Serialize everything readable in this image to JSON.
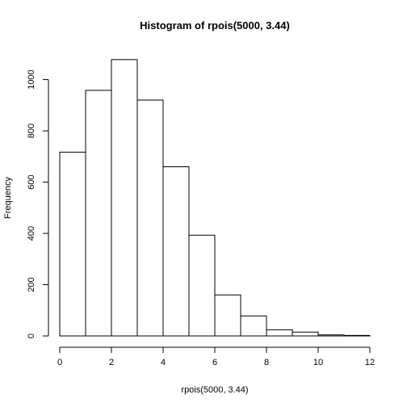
{
  "chart_data": {
    "type": "bar",
    "title": "Histogram of rpois(5000, 3.44)",
    "xlabel": "rpois(5000, 3.44)",
    "ylabel": "Frequency",
    "bin_edges": [
      0,
      1,
      2,
      3,
      4,
      5,
      6,
      7,
      8,
      9,
      10,
      11,
      12
    ],
    "values": [
      717,
      958,
      1078,
      920,
      660,
      393,
      160,
      78,
      24,
      15,
      4,
      2
    ],
    "xlim": [
      0,
      12
    ],
    "ylim": [
      0,
      1090
    ],
    "x_ticks": [
      0,
      2,
      4,
      6,
      8,
      10,
      12
    ],
    "y_ticks": [
      0,
      200,
      400,
      600,
      800,
      1000
    ],
    "grid": false
  }
}
